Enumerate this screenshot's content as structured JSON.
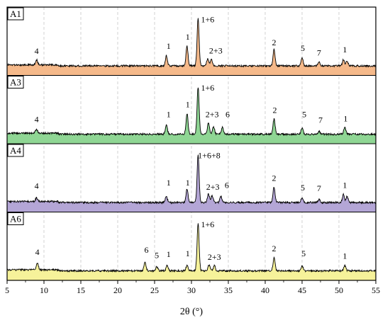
{
  "chart_data": {
    "type": "line",
    "xlabel": "2θ (°)",
    "xlim": [
      5,
      55
    ],
    "x_ticks": [
      "5",
      "10",
      "15",
      "20",
      "25",
      "30",
      "35",
      "40",
      "45",
      "50",
      "55"
    ],
    "grid": "vertical dashed",
    "series": [
      {
        "name": "A1",
        "color": "#f5b98a",
        "peaks": [
          [
            9,
            0.1
          ],
          [
            26.6,
            0.2
          ],
          [
            29.4,
            0.38
          ],
          [
            30.9,
            0.92
          ],
          [
            32.2,
            0.14
          ],
          [
            32.7,
            0.12
          ],
          [
            41.2,
            0.33
          ],
          [
            45,
            0.15
          ],
          [
            47.3,
            0.07
          ],
          [
            50.6,
            0.12
          ],
          [
            51.1,
            0.1
          ]
        ],
        "labels": [
          {
            "text": "4",
            "x": 9,
            "y": 0.28
          },
          {
            "text": "1",
            "x": 26.9,
            "y": 0.38
          },
          {
            "text": "1",
            "x": 29.5,
            "y": 0.56
          },
          {
            "text": "1+6",
            "x": 32.2,
            "y": 0.9
          },
          {
            "text": "2+3",
            "x": 33.3,
            "y": 0.29
          },
          {
            "text": "2",
            "x": 41.2,
            "y": 0.45
          },
          {
            "text": "5",
            "x": 45.1,
            "y": 0.34
          },
          {
            "text": "7",
            "x": 47.3,
            "y": 0.25
          },
          {
            "text": "1",
            "x": 50.8,
            "y": 0.31
          }
        ]
      },
      {
        "name": "A3",
        "color": "#8fd694",
        "peaks": [
          [
            9,
            0.08
          ],
          [
            26.6,
            0.18
          ],
          [
            29.4,
            0.4
          ],
          [
            30.9,
            0.92
          ],
          [
            32.3,
            0.22
          ],
          [
            33.0,
            0.15
          ],
          [
            34.2,
            0.13
          ],
          [
            41.2,
            0.3
          ],
          [
            45,
            0.12
          ],
          [
            47.3,
            0.06
          ],
          [
            50.8,
            0.14
          ]
        ],
        "labels": [
          {
            "text": "4",
            "x": 9,
            "y": 0.28
          },
          {
            "text": "1",
            "x": 26.9,
            "y": 0.38
          },
          {
            "text": "1",
            "x": 29.5,
            "y": 0.57
          },
          {
            "text": "1+6",
            "x": 32.2,
            "y": 0.9
          },
          {
            "text": "2+3",
            "x": 32.8,
            "y": 0.38
          },
          {
            "text": "6",
            "x": 34.9,
            "y": 0.38
          },
          {
            "text": "2",
            "x": 41.3,
            "y": 0.46
          },
          {
            "text": "5",
            "x": 45.3,
            "y": 0.38
          },
          {
            "text": "7",
            "x": 47.5,
            "y": 0.27
          },
          {
            "text": "1",
            "x": 50.9,
            "y": 0.3
          }
        ]
      },
      {
        "name": "A4",
        "color": "#b4a6d6",
        "peaks": [
          [
            9,
            0.07
          ],
          [
            26.6,
            0.12
          ],
          [
            29.4,
            0.26
          ],
          [
            30.9,
            0.92
          ],
          [
            32.3,
            0.17
          ],
          [
            32.8,
            0.14
          ],
          [
            34.0,
            0.12
          ],
          [
            41.2,
            0.3
          ],
          [
            45,
            0.1
          ],
          [
            47.3,
            0.06
          ],
          [
            50.6,
            0.16
          ],
          [
            51.1,
            0.12
          ]
        ],
        "labels": [
          {
            "text": "4",
            "x": 9,
            "y": 0.32
          },
          {
            "text": "1",
            "x": 26.9,
            "y": 0.38
          },
          {
            "text": "1",
            "x": 29.5,
            "y": 0.38
          },
          {
            "text": "1+6+8",
            "x": 32.4,
            "y": 0.91
          },
          {
            "text": "2+3",
            "x": 32.9,
            "y": 0.3
          },
          {
            "text": "6",
            "x": 34.8,
            "y": 0.33
          },
          {
            "text": "2",
            "x": 41.2,
            "y": 0.47
          },
          {
            "text": "5",
            "x": 45.1,
            "y": 0.28
          },
          {
            "text": "7",
            "x": 47.3,
            "y": 0.27
          },
          {
            "text": "1",
            "x": 50.8,
            "y": 0.33
          }
        ]
      },
      {
        "name": "A6",
        "color": "#f6f29a",
        "peaks": [
          [
            9.1,
            0.13
          ],
          [
            23.7,
            0.17
          ],
          [
            25.3,
            0.08
          ],
          [
            26.7,
            0.1
          ],
          [
            29.4,
            0.1
          ],
          [
            30.9,
            0.92
          ],
          [
            32.4,
            0.12
          ],
          [
            33.1,
            0.1
          ],
          [
            41.2,
            0.25
          ],
          [
            45,
            0.1
          ],
          [
            50.8,
            0.1
          ]
        ],
        "labels": [
          {
            "text": "4",
            "x": 9.1,
            "y": 0.36
          },
          {
            "text": "6",
            "x": 23.9,
            "y": 0.4
          },
          {
            "text": "5",
            "x": 25.3,
            "y": 0.3
          },
          {
            "text": "1",
            "x": 26.9,
            "y": 0.32
          },
          {
            "text": "1",
            "x": 29.5,
            "y": 0.33
          },
          {
            "text": "1+6",
            "x": 32.2,
            "y": 0.9
          },
          {
            "text": "2+3",
            "x": 33.1,
            "y": 0.26
          },
          {
            "text": "2",
            "x": 41.2,
            "y": 0.43
          },
          {
            "text": "5",
            "x": 45.2,
            "y": 0.33
          },
          {
            "text": "1",
            "x": 50.8,
            "y": 0.28
          }
        ]
      }
    ]
  }
}
